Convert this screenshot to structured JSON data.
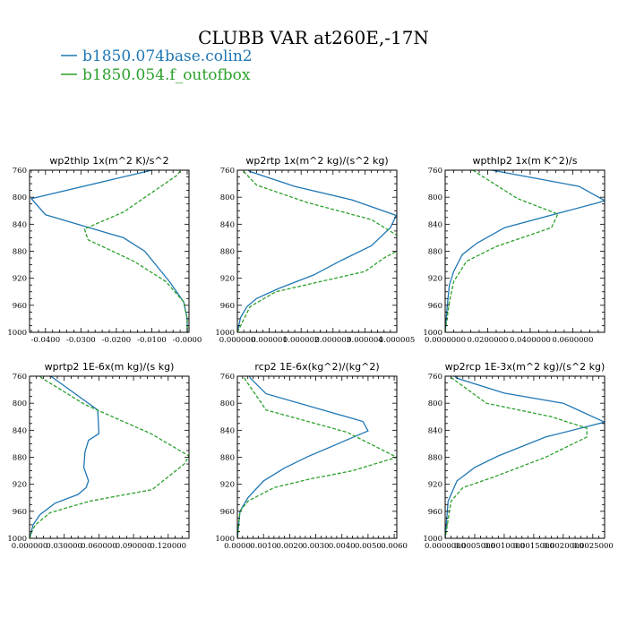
{
  "title": "CLUBB VAR at260E,-17N",
  "legend": [
    {
      "label": "b1850.074base.colin2",
      "color": "#1f77b4",
      "dash": "solid"
    },
    {
      "label": "b1850.054.f_outofbox",
      "color": "#2ca02c",
      "dash": "dashed"
    }
  ],
  "chart_data": [
    {
      "type": "line",
      "title": "wp2thlp   1x(m^2 K)/s^2",
      "xlim": [
        -0.0445,
        0.0005
      ],
      "ylim": [
        760,
        1000
      ],
      "y_inverted": true,
      "xticks": [
        -0.04,
        -0.03,
        -0.02,
        -0.01,
        0.0
      ],
      "xtick_labels": [
        "-0.0400",
        "-0.0300",
        "-0.0200",
        "-0.0100",
        "-0.0000"
      ],
      "yticks": [
        760,
        800,
        840,
        880,
        920,
        960,
        1000
      ],
      "ytick_labels": [
        "760",
        "800",
        "840",
        "880",
        "920",
        "960",
        "1000"
      ],
      "series": [
        {
          "x": [
            -0.009,
            -0.01,
            -0.044,
            -0.04,
            -0.018,
            -0.012,
            -0.005,
            -0.001,
            0.0,
            0.0
          ],
          "y": [
            755,
            760,
            802,
            826,
            860,
            880,
            925,
            955,
            980,
            1000
          ]
        },
        {
          "x": [
            -0.001,
            -0.003,
            -0.018,
            -0.029,
            -0.028,
            -0.015,
            -0.006,
            -0.001,
            0.0,
            0.0
          ],
          "y": [
            755,
            768,
            822,
            847,
            863,
            895,
            925,
            955,
            980,
            1000
          ]
        }
      ]
    },
    {
      "type": "line",
      "title": "wp2rtp   1x(m^2 kg)/(s^2 kg)",
      "xlim": [
        0.0,
        5e-06
      ],
      "ylim": [
        760,
        1000
      ],
      "y_inverted": true,
      "xticks": [
        0.0,
        1e-06,
        2e-06,
        3e-06,
        4e-06,
        5e-06
      ],
      "xtick_labels": [
        "0.000000",
        "0.000001",
        "0.000002",
        "0.000003",
        "0.000004",
        "0.000005"
      ],
      "yticks": [
        760,
        800,
        840,
        880,
        920,
        960,
        1000
      ],
      "ytick_labels": [
        "760",
        "800",
        "840",
        "880",
        "920",
        "960",
        "1000"
      ],
      "series": [
        {
          "x": [
            2e-07,
            4e-07,
            1.8e-06,
            3.6e-06,
            4.98e-06,
            4.8e-06,
            4.2e-06,
            3.2e-06,
            2.4e-06,
            1.3e-06,
            6e-07,
            3e-07,
            1e-07,
            0.0
          ],
          "y": [
            755,
            762,
            784,
            804,
            827,
            845,
            872,
            895,
            915,
            935,
            950,
            962,
            978,
            1000
          ]
        },
        {
          "x": [
            1e-07,
            2e-07,
            6e-07,
            2.2e-06,
            4.2e-06,
            5.2e-06,
            5.2e-06,
            4.6e-06,
            4e-06,
            2.6e-06,
            1.2e-06,
            4e-07,
            0.0
          ],
          "y": [
            755,
            762,
            782,
            808,
            833,
            862,
            875,
            890,
            910,
            925,
            940,
            962,
            1000
          ]
        }
      ]
    },
    {
      "type": "line",
      "title": "wpthlp2   1x(m K^2)/s",
      "xlim": [
        0.0,
        0.075
      ],
      "ylim": [
        760,
        1000
      ],
      "y_inverted": true,
      "xticks": [
        0.0,
        0.02,
        0.04,
        0.06
      ],
      "xtick_labels": [
        "0.0000000",
        "0.0200000",
        "0.0400000",
        "0.0600000"
      ],
      "yticks": [
        760,
        800,
        840,
        880,
        920,
        960,
        1000
      ],
      "ytick_labels": [
        "760",
        "800",
        "840",
        "880",
        "920",
        "960",
        "1000"
      ],
      "series": [
        {
          "x": [
            0.02,
            0.022,
            0.063,
            0.075,
            0.072,
            0.028,
            0.015,
            0.008,
            0.004,
            0.002,
            0.001,
            0.0
          ],
          "y": [
            755,
            760,
            784,
            805,
            808,
            845,
            868,
            885,
            910,
            930,
            960,
            1000
          ]
        },
        {
          "x": [
            0.011,
            0.014,
            0.034,
            0.053,
            0.05,
            0.024,
            0.01,
            0.004,
            0.002,
            0.0
          ],
          "y": [
            755,
            762,
            802,
            825,
            845,
            873,
            895,
            925,
            955,
            1000
          ]
        }
      ]
    },
    {
      "type": "line",
      "title": "wprtp2   1E-6x(m kg)/(s kg)",
      "xlim": [
        0.0,
        0.138
      ],
      "ylim": [
        760,
        1000
      ],
      "y_inverted": true,
      "xticks": [
        0.0,
        0.03,
        0.06,
        0.09,
        0.12
      ],
      "xtick_labels": [
        "0.000000",
        "0.030000",
        "0.060000",
        "0.090000",
        "0.120000"
      ],
      "yticks": [
        760,
        800,
        840,
        880,
        920,
        960,
        1000
      ],
      "ytick_labels": [
        "760",
        "800",
        "840",
        "880",
        "920",
        "960",
        "1000"
      ],
      "series": [
        {
          "x": [
            0.013,
            0.02,
            0.059,
            0.06,
            0.051,
            0.048,
            0.047,
            0.051,
            0.049,
            0.042,
            0.022,
            0.009,
            0.003,
            0.0
          ],
          "y": [
            755,
            762,
            810,
            845,
            855,
            872,
            895,
            915,
            925,
            935,
            948,
            965,
            980,
            1000
          ]
        },
        {
          "x": [
            0.006,
            0.01,
            0.048,
            0.105,
            0.13,
            0.138,
            0.134,
            0.106,
            0.052,
            0.018,
            0.005,
            0.002,
            0.0
          ],
          "y": [
            755,
            762,
            802,
            845,
            870,
            878,
            890,
            928,
            945,
            962,
            980,
            990,
            1000
          ]
        }
      ]
    },
    {
      "type": "line",
      "title": "rcp2   1E-6x(kg^2)/(kg^2)",
      "xlim": [
        0.0,
        0.0061
      ],
      "ylim": [
        760,
        1000
      ],
      "y_inverted": true,
      "xticks": [
        0.0,
        0.001,
        0.002,
        0.003,
        0.004,
        0.005,
        0.006
      ],
      "xtick_labels": [
        "0.0000",
        "0.0010",
        "0.0020",
        "0.0030",
        "0.0040",
        "0.0050",
        "0.0060"
      ],
      "yticks": [
        760,
        800,
        840,
        880,
        920,
        960,
        1000
      ],
      "ytick_labels": [
        "760",
        "800",
        "840",
        "880",
        "920",
        "960",
        "1000"
      ],
      "series": [
        {
          "x": [
            0.0004,
            0.0005,
            0.0011,
            0.0048,
            0.005,
            0.0027,
            0.0018,
            0.001,
            0.0004,
            0.0001,
            0.0
          ],
          "y": [
            755,
            763,
            786,
            827,
            841,
            879,
            896,
            915,
            940,
            960,
            1000
          ]
        },
        {
          "x": [
            0.0002,
            0.0003,
            0.0011,
            0.0042,
            0.0061,
            0.0044,
            0.0028,
            0.0014,
            0.0004,
            0.0001,
            0.0
          ],
          "y": [
            755,
            765,
            810,
            843,
            880,
            900,
            912,
            925,
            945,
            960,
            1000
          ]
        }
      ]
    },
    {
      "type": "line",
      "title": "wp2rcp   1E-3x(m^2 kg)/(s^2 kg)",
      "xlim": [
        0.0,
        0.0027
      ],
      "ylim": [
        760,
        1000
      ],
      "y_inverted": true,
      "xticks": [
        0.0,
        0.0005,
        0.001,
        0.0015,
        0.002,
        0.0025
      ],
      "xtick_labels": [
        "0.0000000",
        "0.0005000",
        "0.0010000",
        "0.0015000",
        "0.0020000",
        "0.0025000"
      ],
      "yticks": [
        760,
        800,
        840,
        880,
        920,
        960,
        1000
      ],
      "ytick_labels": [
        "760",
        "800",
        "840",
        "880",
        "920",
        "960",
        "1000"
      ],
      "series": [
        {
          "x": [
            0.0001,
            0.0002,
            0.001,
            0.002,
            0.0027,
            0.0017,
            0.0009,
            0.0005,
            0.0002,
            5e-05,
            0.0
          ],
          "y": [
            755,
            763,
            785,
            800,
            828,
            850,
            878,
            895,
            915,
            945,
            1000
          ]
        },
        {
          "x": [
            5e-05,
            0.0001,
            0.0007,
            0.0018,
            0.0024,
            0.0024,
            0.0017,
            0.0008,
            0.0003,
            0.0001,
            0.0
          ],
          "y": [
            755,
            762,
            800,
            820,
            837,
            850,
            880,
            910,
            925,
            945,
            1000
          ]
        }
      ]
    }
  ]
}
